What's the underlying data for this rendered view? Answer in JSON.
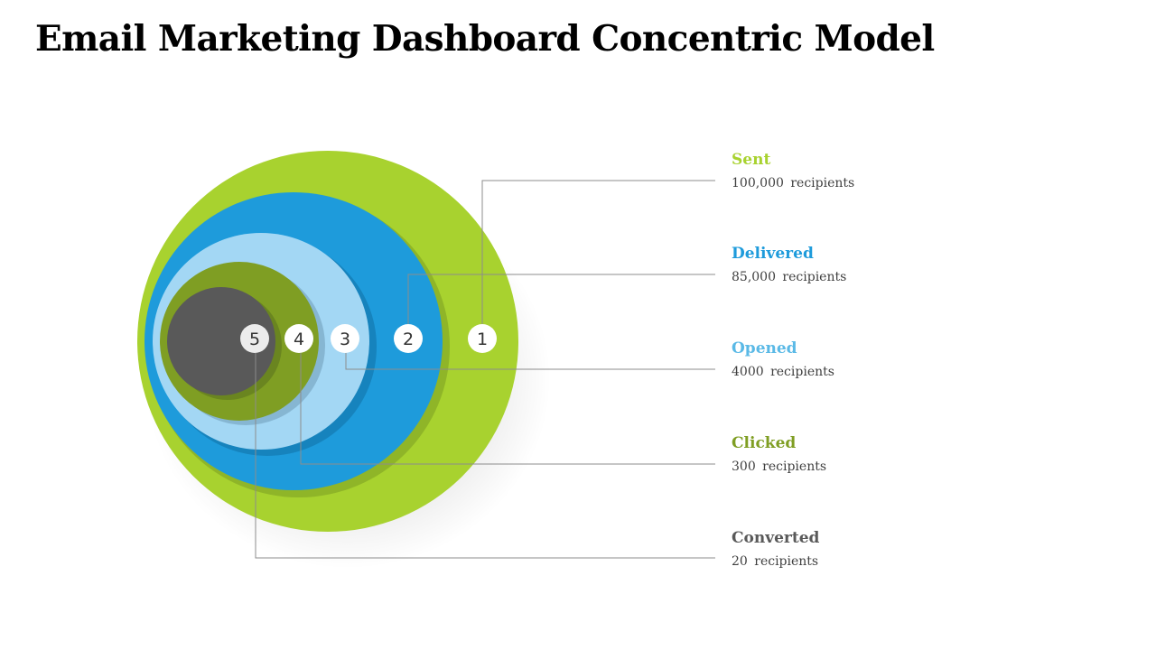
{
  "title": "Email Marketing Dashboard Concentric Model",
  "colors": {
    "sent": "#a8d22f",
    "delivered": "#1e9bdb",
    "opened": "#a3d7f4",
    "clicked": "#7f9e23",
    "converted": "#595959",
    "leader_line": "#8c8c8c"
  },
  "stages": [
    {
      "number": "1",
      "name": "Sent",
      "value": "100,000 recipients",
      "color": "#a8d22f"
    },
    {
      "number": "2",
      "name": "Delivered",
      "value": "85,000 recipients",
      "color": "#1e9bdb"
    },
    {
      "number": "3",
      "name": "Opened",
      "value": "4000 recipients",
      "color": "#5ab9e6"
    },
    {
      "number": "4",
      "name": "Clicked",
      "value": "300 recipients",
      "color": "#7f9e23"
    },
    {
      "number": "5",
      "name": "Converted",
      "value": "20 recipients",
      "color": "#595959"
    }
  ]
}
